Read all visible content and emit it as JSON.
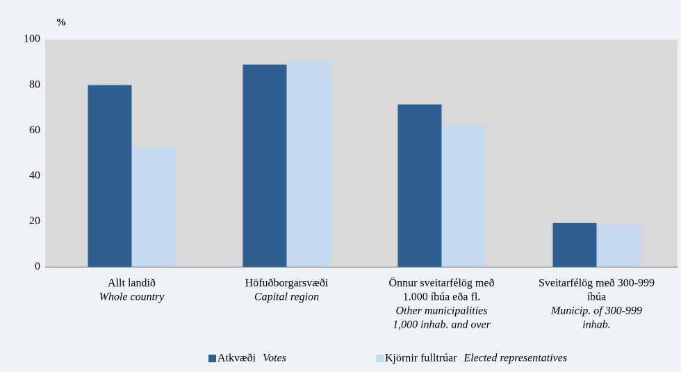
{
  "chart_data": {
    "type": "bar",
    "y_label": "%",
    "categories": [
      {
        "is": [
          "Allt landið"
        ],
        "en": [
          "Whole country"
        ]
      },
      {
        "is": [
          "Höfuðborgarsvæði"
        ],
        "en": [
          "Capital region"
        ]
      },
      {
        "is": [
          "Önnur sveitarfélög með",
          "1.000 íbúa eða fl."
        ],
        "en": [
          "Other municipalities",
          "1,000 inhab. and over"
        ]
      },
      {
        "is": [
          "Sveitarfélög með 300-999",
          "íbúa"
        ],
        "en": [
          "Municip. of 300-999",
          "inhab."
        ]
      }
    ],
    "series": [
      {
        "name": "Atkvæði",
        "name_en": "Votes",
        "color": "#2e5f8f",
        "values": [
          80,
          89,
          71.5,
          19.5
        ]
      },
      {
        "name": "Kjörnir fulltrúar",
        "name_en": "Elected representatives",
        "color": "#c5d9f1",
        "values": [
          52.5,
          90.5,
          62.5,
          18.5
        ]
      }
    ],
    "ylim": [
      0,
      100
    ],
    "yticks": [
      0,
      20,
      40,
      60,
      80,
      100
    ],
    "grid": false
  }
}
